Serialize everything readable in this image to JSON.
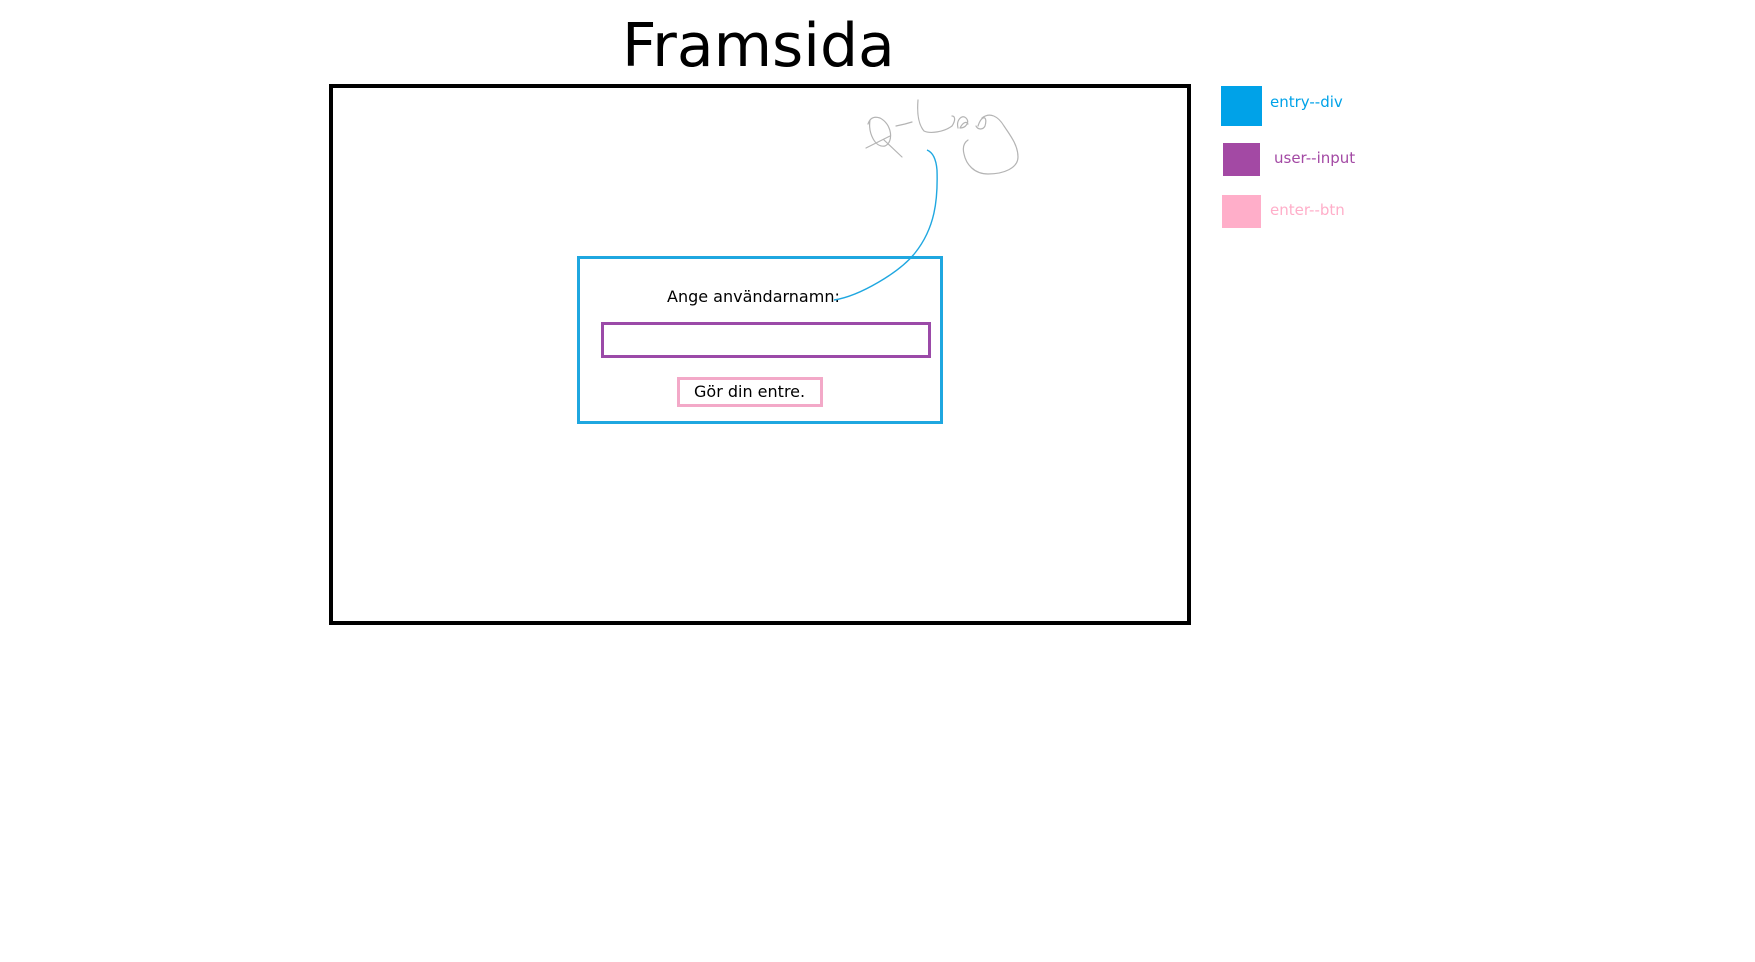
{
  "page": {
    "title": "Framsida"
  },
  "entry_form": {
    "prompt_label": "Ange användarnamn:",
    "username_value": "",
    "enter_button_label": "Gör din entre."
  },
  "legend": {
    "items": [
      {
        "label": "entry--div",
        "color": "#00a2e8"
      },
      {
        "label": "user--input",
        "color": "#a349a4"
      },
      {
        "label": "enter--btn",
        "color": "#ffaec9"
      }
    ]
  },
  "colors": {
    "frame_border": "#000000",
    "entry_div_border": "#1fa7e0",
    "user_input_border": "#9b4aa8",
    "enter_btn_border": "#f3a9c8",
    "annotation_line": "#1fa7e0",
    "sketch_stroke": "#b4b4b4"
  }
}
